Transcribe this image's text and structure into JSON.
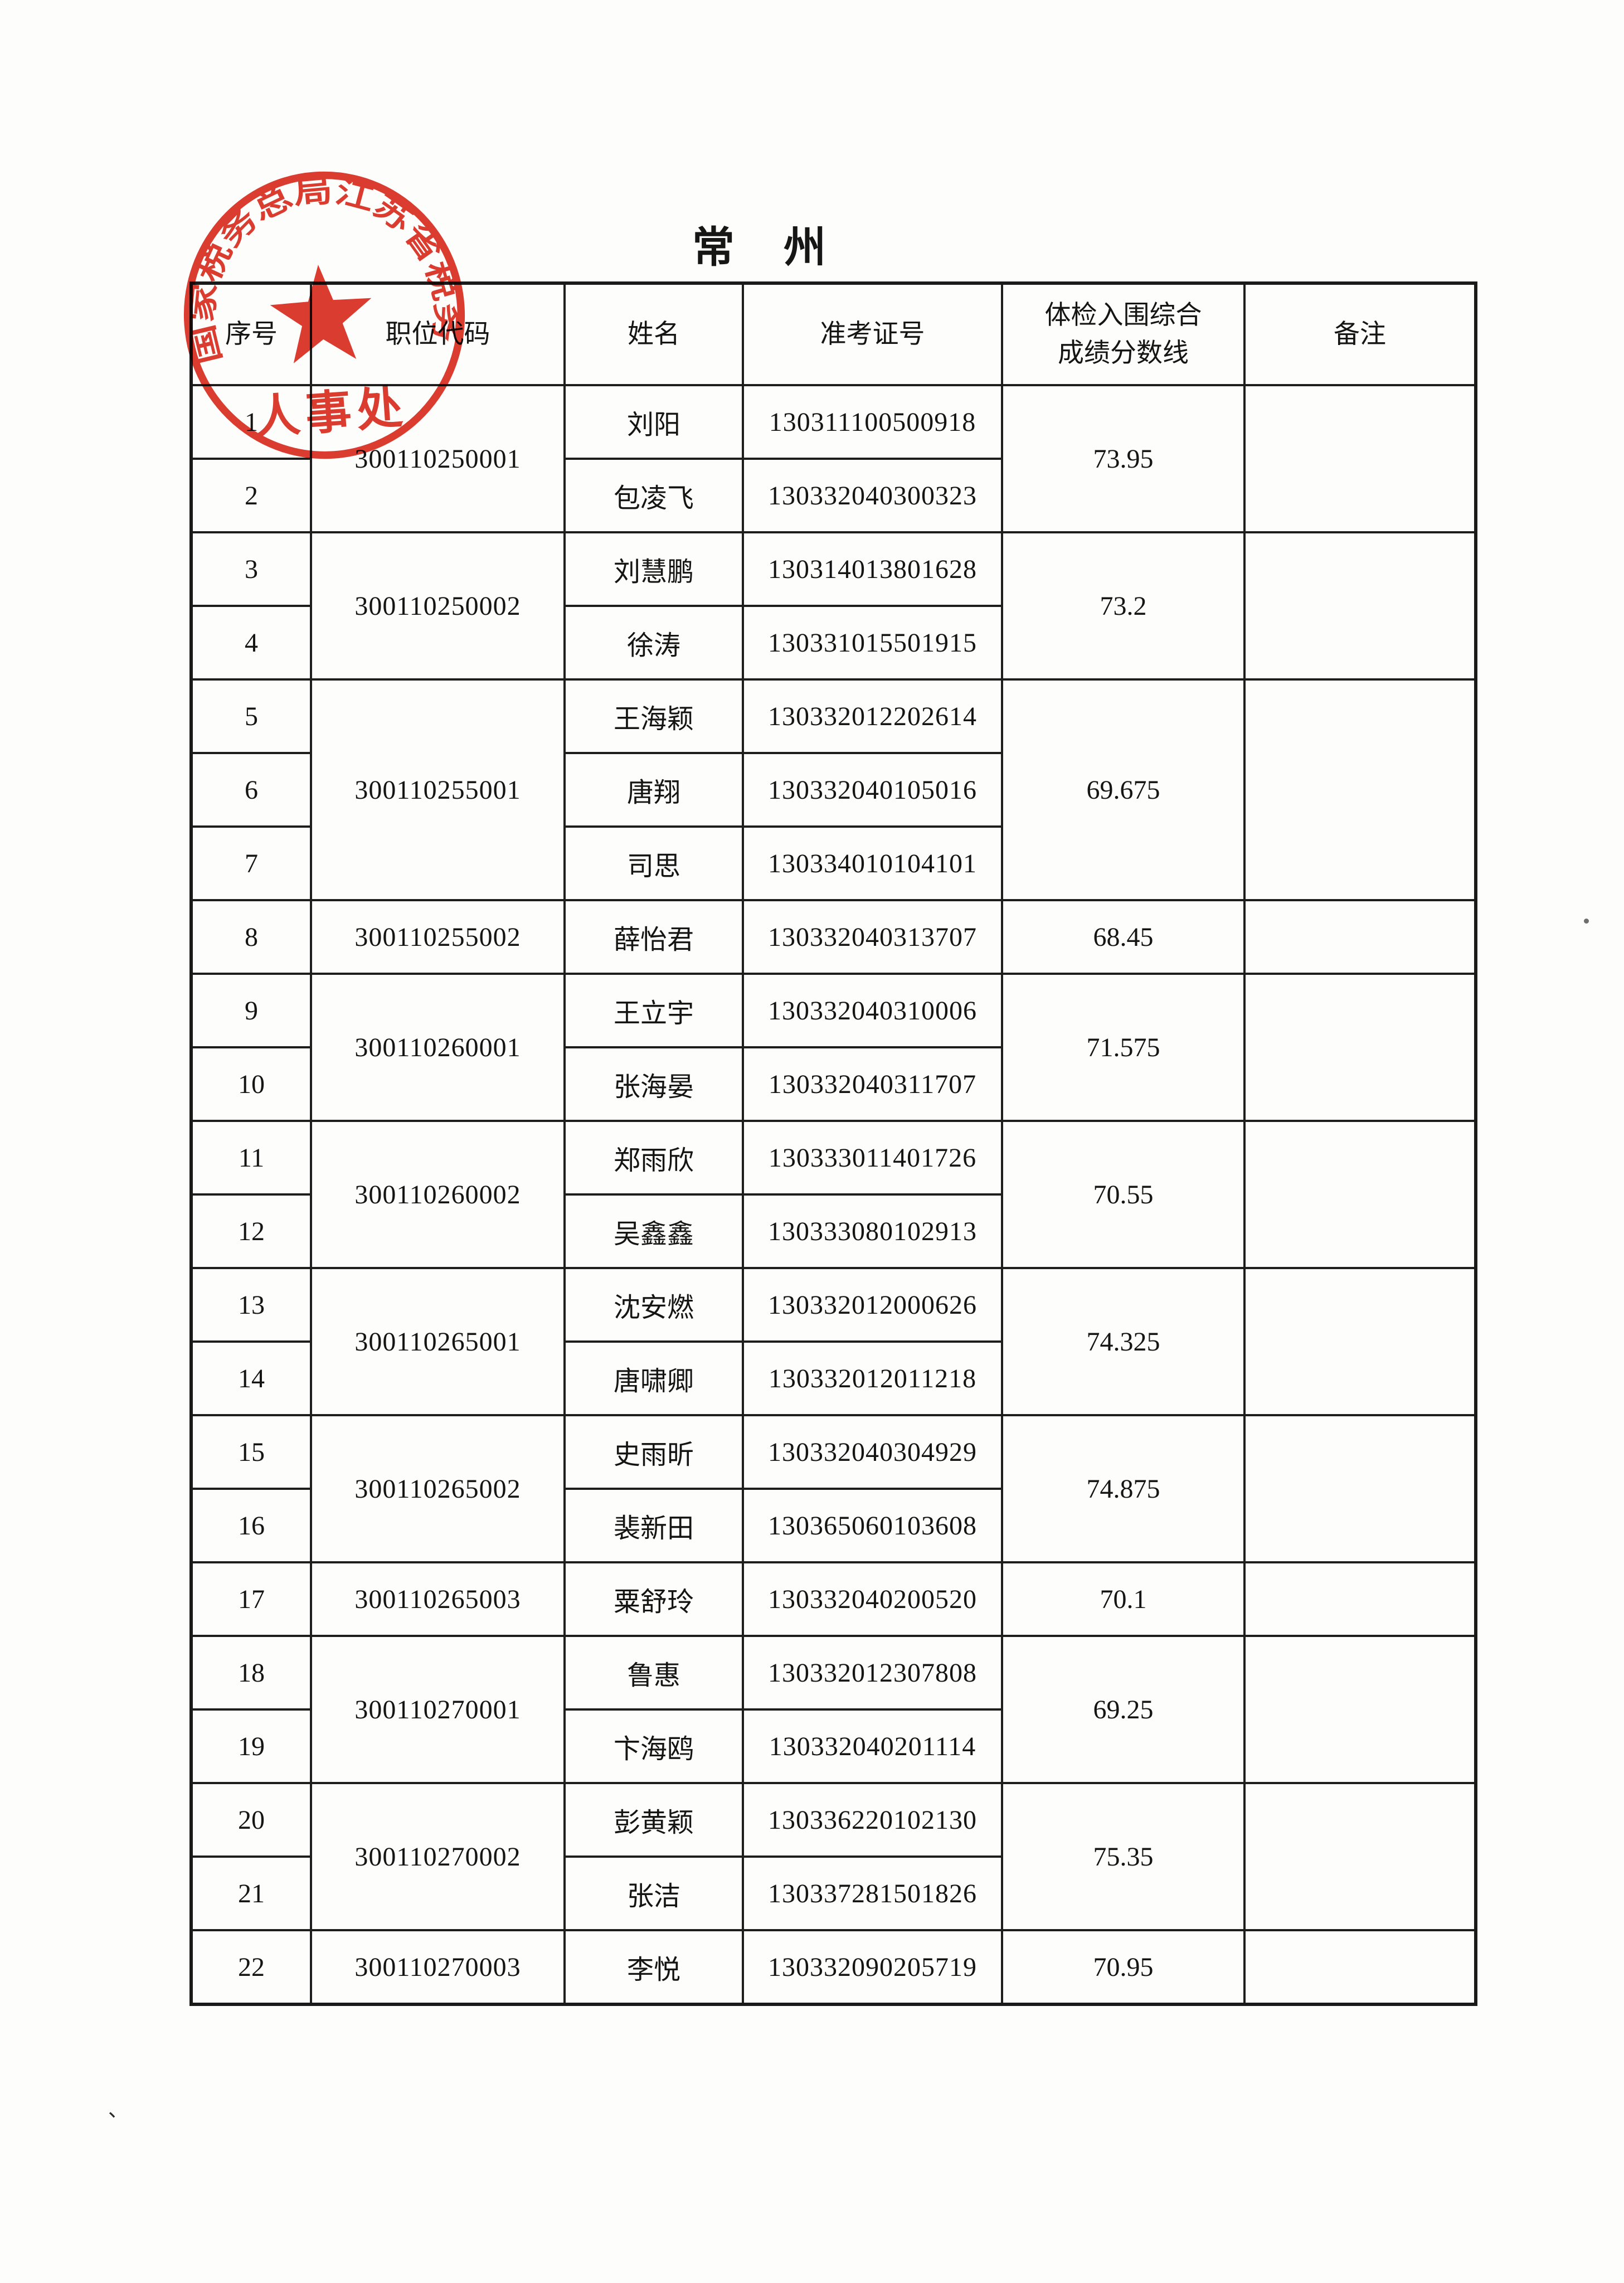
{
  "page": {
    "title": "常　州"
  },
  "stamp": {
    "arc_text": "国家税务总局江苏省税务局",
    "department": "人事处",
    "color": "#da2b1e"
  },
  "marks": {
    "bottom_left": "、"
  },
  "table": {
    "headers": [
      "序号",
      "职位代码",
      "姓名",
      "准考证号",
      "体检入围综合\n成绩分数线",
      "备注"
    ],
    "groups": [
      {
        "code": "300110250001",
        "score": "73.95",
        "remark": "",
        "members": [
          {
            "no": "1",
            "name": "刘阳",
            "ticket": "130311100500918"
          },
          {
            "no": "2",
            "name": "包凌飞",
            "ticket": "130332040300323"
          }
        ]
      },
      {
        "code": "300110250002",
        "score": "73.2",
        "remark": "",
        "members": [
          {
            "no": "3",
            "name": "刘慧鹏",
            "ticket": "130314013801628"
          },
          {
            "no": "4",
            "name": "徐涛",
            "ticket": "130331015501915"
          }
        ]
      },
      {
        "code": "300110255001",
        "score": "69.675",
        "remark": "",
        "members": [
          {
            "no": "5",
            "name": "王海颖",
            "ticket": "130332012202614"
          },
          {
            "no": "6",
            "name": "唐翔",
            "ticket": "130332040105016"
          },
          {
            "no": "7",
            "name": "司思",
            "ticket": "130334010104101"
          }
        ]
      },
      {
        "code": "300110255002",
        "score": "68.45",
        "remark": "",
        "members": [
          {
            "no": "8",
            "name": "薛怡君",
            "ticket": "130332040313707"
          }
        ]
      },
      {
        "code": "300110260001",
        "score": "71.575",
        "remark": "",
        "members": [
          {
            "no": "9",
            "name": "王立宇",
            "ticket": "130332040310006"
          },
          {
            "no": "10",
            "name": "张海晏",
            "ticket": "130332040311707"
          }
        ]
      },
      {
        "code": "300110260002",
        "score": "70.55",
        "remark": "",
        "members": [
          {
            "no": "11",
            "name": "郑雨欣",
            "ticket": "130333011401726"
          },
          {
            "no": "12",
            "name": "吴鑫鑫",
            "ticket": "130333080102913"
          }
        ]
      },
      {
        "code": "300110265001",
        "score": "74.325",
        "remark": "",
        "members": [
          {
            "no": "13",
            "name": "沈安燃",
            "ticket": "130332012000626"
          },
          {
            "no": "14",
            "name": "唐啸卿",
            "ticket": "130332012011218"
          }
        ]
      },
      {
        "code": "300110265002",
        "score": "74.875",
        "remark": "",
        "members": [
          {
            "no": "15",
            "name": "史雨昕",
            "ticket": "130332040304929"
          },
          {
            "no": "16",
            "name": "裴新田",
            "ticket": "130365060103608"
          }
        ]
      },
      {
        "code": "300110265003",
        "score": "70.1",
        "remark": "",
        "members": [
          {
            "no": "17",
            "name": "粟舒玲",
            "ticket": "130332040200520"
          }
        ]
      },
      {
        "code": "300110270001",
        "score": "69.25",
        "remark": "",
        "members": [
          {
            "no": "18",
            "name": "鲁惠",
            "ticket": "130332012307808"
          },
          {
            "no": "19",
            "name": "卞海鸥",
            "ticket": "130332040201114"
          }
        ]
      },
      {
        "code": "300110270002",
        "score": "75.35",
        "remark": "",
        "members": [
          {
            "no": "20",
            "name": "彭黄颖",
            "ticket": "130336220102130"
          },
          {
            "no": "21",
            "name": "张洁",
            "ticket": "130337281501826"
          }
        ]
      },
      {
        "code": "300110270003",
        "score": "70.95",
        "remark": "",
        "members": [
          {
            "no": "22",
            "name": "李悦",
            "ticket": "130332090205719"
          }
        ]
      }
    ]
  }
}
